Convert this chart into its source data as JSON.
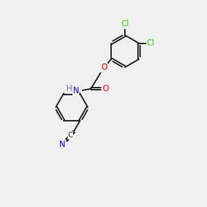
{
  "bg_color": "#f0f0f0",
  "bond_color": "#1a1a1a",
  "bond_width": 1.4,
  "dbo": 0.055,
  "atom_colors": {
    "Cl": "#33cc00",
    "O": "#ee0000",
    "N": "#0000ee",
    "H": "#777777",
    "C": "#1a1a1a",
    "N_nitrile": "#0000ee"
  },
  "font_size": 8.5,
  "figsize": [
    3.0,
    3.0
  ],
  "dpi": 100,
  "ring_r": 0.78
}
